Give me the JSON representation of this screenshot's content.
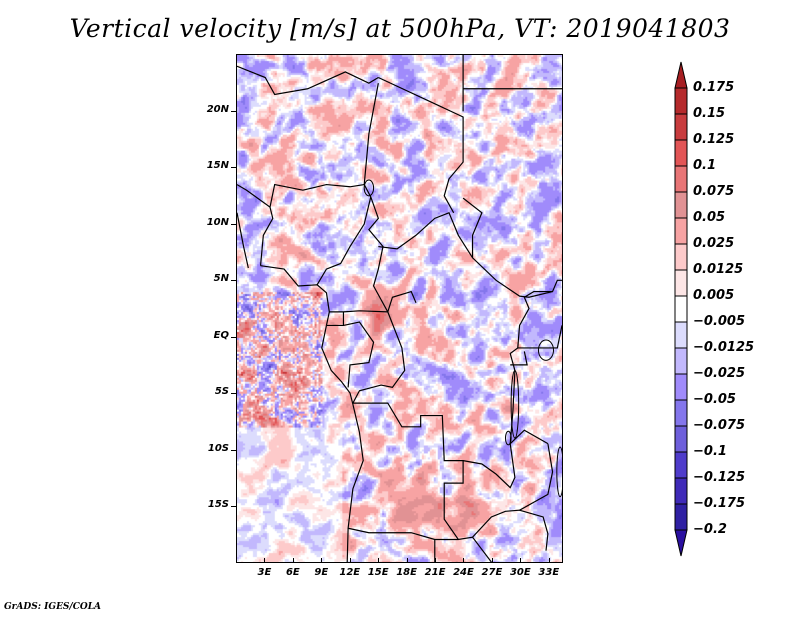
{
  "chart_data": {
    "type": "heatmap",
    "title": "Vertical velocity [m/s] at 500hPa, VT: 2019041803",
    "variable": "Vertical velocity",
    "units": "m/s",
    "level": "500hPa",
    "valid_time": "2019041803",
    "xlabel": "",
    "ylabel": "",
    "xlim": [
      0,
      34.5
    ],
    "ylim": [
      -20,
      25
    ],
    "x_ticks": [
      "3E",
      "6E",
      "9E",
      "12E",
      "15E",
      "18E",
      "21E",
      "24E",
      "27E",
      "30E",
      "33E"
    ],
    "x_tick_values": [
      3,
      6,
      9,
      12,
      15,
      18,
      21,
      24,
      27,
      30,
      33
    ],
    "y_ticks": [
      "20N",
      "15N",
      "10N",
      "5N",
      "EQ",
      "5S",
      "10S",
      "15S"
    ],
    "y_tick_values": [
      20,
      15,
      10,
      5,
      0,
      -5,
      -10,
      -15
    ],
    "colorbar": {
      "placement": "right",
      "orientation": "vertical",
      "extend": "both",
      "levels": [
        0.175,
        0.15,
        0.125,
        0.1,
        0.075,
        0.05,
        0.025,
        0.0125,
        0.005,
        -0.005,
        -0.0125,
        -0.025,
        -0.05,
        -0.075,
        -0.1,
        -0.125,
        -0.175,
        -0.2
      ],
      "labels": [
        "0.175",
        "0.15",
        "0.125",
        "0.1",
        "0.075",
        "0.05",
        "0.025",
        "0.0125",
        "0.005",
        "−0.005",
        "−0.0125",
        "−0.025",
        "−0.05",
        "−0.075",
        "−0.1",
        "−0.125",
        "−0.175",
        "−0.2"
      ],
      "colors_top_to_bottom": [
        "#a61e22",
        "#b52a2c",
        "#c83c3e",
        "#e25556",
        "#e87576",
        "#e19294",
        "#f7a3a3",
        "#fdcaca",
        "#fde6e6",
        "#ffffff",
        "#dcdcfd",
        "#c2b8fd",
        "#a08bfb",
        "#8476ec",
        "#6e5fdb",
        "#4f3ccb",
        "#3f2ab8",
        "#2f20a3",
        "#2a0fa0"
      ]
    },
    "regions_noted": {
      "strong_ascent": [
        "Gulf of Guinea near equator (0-6E, EQ-8S)",
        "Gabon/Congo near 13-16E 1-3N",
        "Zambia/Angola 14-24E 10-17S"
      ],
      "description": "Mottled field of weak ascent (red, positive) and descent (blue, negative) over Central Africa with country borders overlaid"
    }
  },
  "footer": "GrADS: IGES/COLA"
}
